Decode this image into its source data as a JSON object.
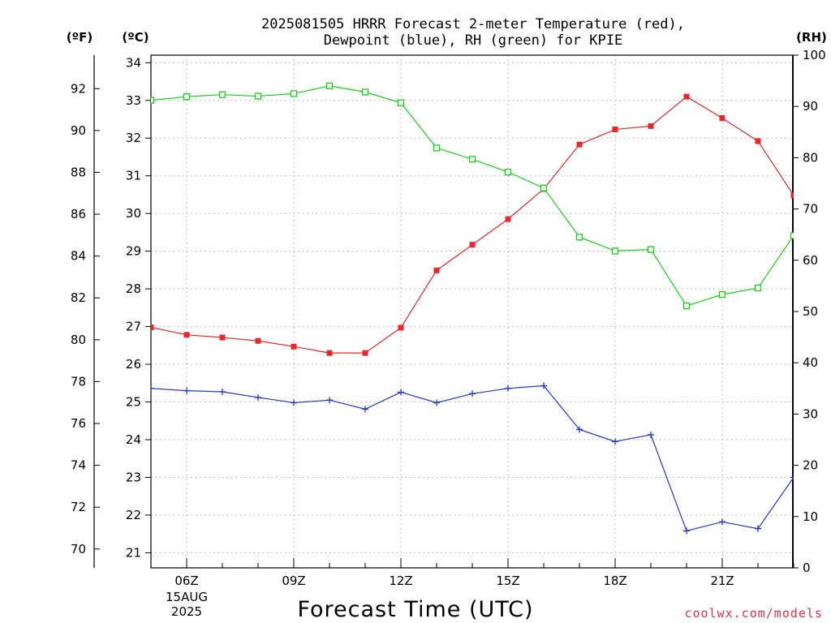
{
  "chart_data": {
    "type": "line",
    "title_line1": "2025081505 HRRR Forecast 2-meter Temperature (red),",
    "title_line2": "Dewpoint (blue), RH (green) for KPIE",
    "xlabel": "Forecast Time (UTC)",
    "credit": "coolwx.com/models",
    "units": {
      "fahrenheit": "(ºF)",
      "celsius": "(ºC)",
      "rh": "(RH)"
    },
    "x": [
      "05Z",
      "06Z",
      "07Z",
      "08Z",
      "09Z",
      "10Z",
      "11Z",
      "12Z",
      "13Z",
      "14Z",
      "15Z",
      "16Z",
      "17Z",
      "18Z",
      "19Z",
      "20Z",
      "21Z",
      "22Z",
      "23Z"
    ],
    "x_tick_labels": [
      "06Z",
      "09Z",
      "12Z",
      "15Z",
      "18Z",
      "21Z"
    ],
    "date_label": [
      "15AUG",
      "2025"
    ],
    "axes": {
      "left_f": {
        "range": [
          69.1,
          93.6
        ],
        "ticks": [
          70,
          72,
          74,
          76,
          78,
          80,
          82,
          84,
          86,
          88,
          90,
          92
        ]
      },
      "left_c": {
        "range": [
          20.6,
          34.2
        ],
        "ticks": [
          21,
          22,
          23,
          24,
          25,
          26,
          27,
          28,
          29,
          30,
          31,
          32,
          33,
          34
        ]
      },
      "right_rh": {
        "range": [
          0,
          100
        ],
        "ticks": [
          0,
          10,
          20,
          30,
          40,
          50,
          60,
          70,
          80,
          90,
          100
        ]
      }
    },
    "grid": true,
    "series": [
      {
        "color": "#e8262b",
        "marker": "filled-square",
        "axis": "celsius",
        "values": [
          26.98,
          26.78,
          26.71,
          26.62,
          26.47,
          26.3,
          26.3,
          26.97,
          28.49,
          29.17,
          29.85,
          30.65,
          31.83,
          32.23,
          32.32,
          33.1,
          32.53,
          31.92,
          30.48
        ]
      },
      {
        "color": "#2233dd",
        "marker": "plus",
        "axis": "celsius",
        "values": [
          25.36,
          25.3,
          25.27,
          25.12,
          24.98,
          25.05,
          24.81,
          25.26,
          24.98,
          25.22,
          25.36,
          25.43,
          24.27,
          23.95,
          24.13,
          21.58,
          21.82,
          21.64,
          23.0
        ]
      },
      {
        "color": "#18d21a",
        "marker": "open-square",
        "axis": "rh",
        "values": [
          91.2,
          91.9,
          92.3,
          92.0,
          92.5,
          94.0,
          92.8,
          90.7,
          81.9,
          79.7,
          77.2,
          74.1,
          64.5,
          61.8,
          62.1,
          51.1,
          53.3,
          54.6,
          64.8
        ]
      }
    ]
  }
}
